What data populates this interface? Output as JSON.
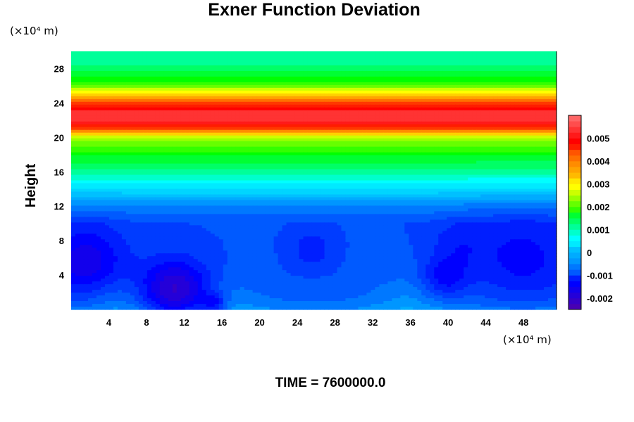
{
  "chart_data": {
    "type": "heatmap",
    "title": "Exner Function Deviation",
    "ylabel": "Height",
    "xlabel": "",
    "x_unit": "(×10⁴ m)",
    "y_unit": "(×10⁴ m)",
    "xlim": [
      0,
      51.5
    ],
    "ylim": [
      0,
      30
    ],
    "x_ticks": [
      4,
      8,
      12,
      16,
      20,
      24,
      28,
      32,
      36,
      40,
      44,
      48
    ],
    "y_ticks": [
      4,
      8,
      12,
      16,
      20,
      24,
      28
    ],
    "colorbar": {
      "range": [
        -0.0025,
        0.006
      ],
      "tick_values": [
        -0.002,
        -0.001,
        0,
        0.001,
        0.002,
        0.003,
        0.004,
        0.005
      ],
      "tick_labels": [
        "-0.002",
        "-0.001",
        "0",
        "0.001",
        "0.002",
        "0.003",
        "0.004",
        "0.005"
      ],
      "colormap": [
        "#5a00a0",
        "#0000ff",
        "#0096ff",
        "#00ffff",
        "#00ff00",
        "#ffff00",
        "#ff8c00",
        "#ff0000",
        "#ff8080"
      ]
    },
    "vertical_profile": {
      "heights": [
        0,
        1,
        2,
        4,
        6,
        8,
        10,
        11,
        12,
        13,
        14,
        16,
        18,
        19,
        20,
        21,
        22,
        23,
        24,
        25,
        26,
        27,
        28,
        29,
        30
      ],
      "values": [
        -0.0005,
        -0.0007,
        -0.0008,
        -0.0009,
        -0.0009,
        -0.0009,
        -0.0009,
        -0.0007,
        -0.0005,
        -0.0001,
        0.0004,
        0.0011,
        0.0017,
        0.0021,
        0.0025,
        0.0045,
        0.0053,
        0.0053,
        0.0044,
        0.0031,
        0.0021,
        0.0016,
        0.0013,
        0.0011,
        0.001
      ]
    },
    "anomalies": [
      {
        "x": 1.5,
        "y": 5.5,
        "r": 3.0,
        "amp": -0.0008
      },
      {
        "x": 11,
        "y": 2,
        "r": 2.5,
        "amp": -0.0012
      },
      {
        "x": 15.2,
        "y": 0.6,
        "r": 0.9,
        "amp": -0.0007
      },
      {
        "x": 25.5,
        "y": 7,
        "r": 1.4,
        "amp": -0.0004
      },
      {
        "x": 39.5,
        "y": 3.5,
        "r": 1.7,
        "amp": -0.0006
      },
      {
        "x": 41,
        "y": 7.5,
        "r": 2.2,
        "amp": -0.0003
      },
      {
        "x": 48,
        "y": 6,
        "r": 4.0,
        "amp": -0.0005
      },
      {
        "x": 36,
        "y": 1.0,
        "r": 3.0,
        "amp": 0.0003
      },
      {
        "x": 17,
        "y": 1.0,
        "r": 2.5,
        "amp": 0.0002
      },
      {
        "x": 5,
        "y": 1.0,
        "r": 2.5,
        "amp": 0.0002
      }
    ]
  },
  "footer": {
    "time_label": "TIME = 7600000.0"
  }
}
